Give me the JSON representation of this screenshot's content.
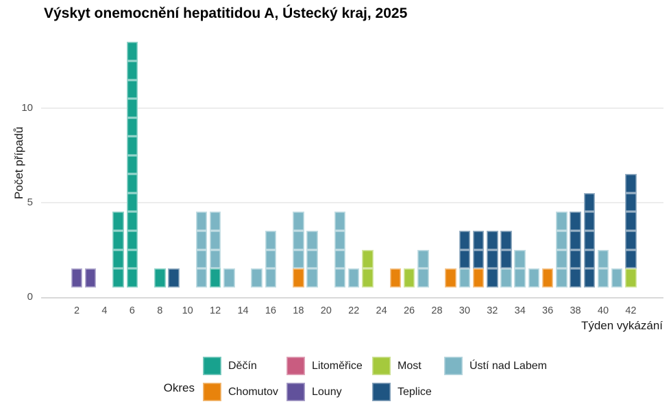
{
  "chart_data": {
    "type": "bar",
    "stacked": true,
    "unit": "one square = one case (tiles centered on integer counts)",
    "title": "Výskyt onemocnění hepatitidou A, Ústecký kraj, 2025",
    "xlabel": "Týden vykázání",
    "ylabel": "Počet případů",
    "legend_title": "Okres",
    "legend_position": "bottom",
    "grid": "horizontal major gridlines only",
    "x_ticks": [
      2,
      4,
      6,
      8,
      10,
      12,
      14,
      16,
      18,
      20,
      22,
      24,
      26,
      28,
      30,
      32,
      34,
      36,
      38,
      40,
      42
    ],
    "y_ticks": [
      0,
      5,
      10
    ],
    "xlim": [
      0.5,
      43.5
    ],
    "ylim": [
      0,
      13.9
    ],
    "districts": {
      "Děčín": "#18A28E",
      "Chomutov": "#E8830C",
      "Litoměřice": "#C95C80",
      "Louny": "#61519B",
      "Most": "#A5C93D",
      "Teplice": "#1F5582",
      "Ústí nad Labem": "#7CB5C4"
    },
    "legend_rows": [
      [
        "Děčín",
        "Litoměřice",
        "Most",
        "Ústí nad Labem"
      ],
      [
        "Chomutov",
        "Louny",
        "Teplice"
      ]
    ],
    "weeks": [
      {
        "week": 2,
        "stack": [
          {
            "district": "Louny",
            "count": 1
          }
        ]
      },
      {
        "week": 3,
        "stack": [
          {
            "district": "Louny",
            "count": 1
          }
        ]
      },
      {
        "week": 5,
        "stack": [
          {
            "district": "Děčín",
            "count": 4
          }
        ]
      },
      {
        "week": 6,
        "stack": [
          {
            "district": "Děčín",
            "count": 13
          }
        ]
      },
      {
        "week": 8,
        "stack": [
          {
            "district": "Děčín",
            "count": 1
          }
        ]
      },
      {
        "week": 9,
        "stack": [
          {
            "district": "Teplice",
            "count": 1
          }
        ]
      },
      {
        "week": 11,
        "stack": [
          {
            "district": "Ústí nad Labem",
            "count": 4
          }
        ]
      },
      {
        "week": 12,
        "stack": [
          {
            "district": "Děčín",
            "count": 1
          },
          {
            "district": "Ústí nad Labem",
            "count": 3
          }
        ]
      },
      {
        "week": 13,
        "stack": [
          {
            "district": "Ústí nad Labem",
            "count": 1
          }
        ]
      },
      {
        "week": 15,
        "stack": [
          {
            "district": "Ústí nad Labem",
            "count": 1
          }
        ]
      },
      {
        "week": 16,
        "stack": [
          {
            "district": "Ústí nad Labem",
            "count": 3
          }
        ]
      },
      {
        "week": 18,
        "stack": [
          {
            "district": "Chomutov",
            "count": 1
          },
          {
            "district": "Ústí nad Labem",
            "count": 3
          }
        ]
      },
      {
        "week": 19,
        "stack": [
          {
            "district": "Ústí nad Labem",
            "count": 3
          }
        ]
      },
      {
        "week": 21,
        "stack": [
          {
            "district": "Ústí nad Labem",
            "count": 4
          }
        ]
      },
      {
        "week": 22,
        "stack": [
          {
            "district": "Ústí nad Labem",
            "count": 1
          }
        ]
      },
      {
        "week": 23,
        "stack": [
          {
            "district": "Most",
            "count": 2
          }
        ]
      },
      {
        "week": 25,
        "stack": [
          {
            "district": "Chomutov",
            "count": 1
          }
        ]
      },
      {
        "week": 26,
        "stack": [
          {
            "district": "Most",
            "count": 1
          }
        ]
      },
      {
        "week": 27,
        "stack": [
          {
            "district": "Ústí nad Labem",
            "count": 2
          }
        ]
      },
      {
        "week": 29,
        "stack": [
          {
            "district": "Chomutov",
            "count": 1
          }
        ]
      },
      {
        "week": 30,
        "stack": [
          {
            "district": "Ústí nad Labem",
            "count": 1
          },
          {
            "district": "Teplice",
            "count": 2
          }
        ]
      },
      {
        "week": 31,
        "stack": [
          {
            "district": "Chomutov",
            "count": 1
          },
          {
            "district": "Teplice",
            "count": 2
          }
        ]
      },
      {
        "week": 32,
        "stack": [
          {
            "district": "Teplice",
            "count": 3
          }
        ]
      },
      {
        "week": 33,
        "stack": [
          {
            "district": "Ústí nad Labem",
            "count": 1
          },
          {
            "district": "Teplice",
            "count": 2
          }
        ]
      },
      {
        "week": 34,
        "stack": [
          {
            "district": "Ústí nad Labem",
            "count": 2
          }
        ]
      },
      {
        "week": 35,
        "stack": [
          {
            "district": "Ústí nad Labem",
            "count": 1
          }
        ]
      },
      {
        "week": 36,
        "stack": [
          {
            "district": "Chomutov",
            "count": 1
          }
        ]
      },
      {
        "week": 37,
        "stack": [
          {
            "district": "Ústí nad Labem",
            "count": 4
          }
        ]
      },
      {
        "week": 38,
        "stack": [
          {
            "district": "Teplice",
            "count": 4
          }
        ]
      },
      {
        "week": 39,
        "stack": [
          {
            "district": "Teplice",
            "count": 5
          }
        ]
      },
      {
        "week": 40,
        "stack": [
          {
            "district": "Ústí nad Labem",
            "count": 2
          }
        ]
      },
      {
        "week": 41,
        "stack": [
          {
            "district": "Ústí nad Labem",
            "count": 1
          }
        ]
      },
      {
        "week": 42,
        "stack": [
          {
            "district": "Most",
            "count": 1
          },
          {
            "district": "Teplice",
            "count": 5
          }
        ]
      }
    ],
    "colors": {
      "background": "#FFFFFF",
      "gridline": "#ECECEC",
      "axis_line": "#D9D9D9",
      "tick_text": "#4D4D4D",
      "label_text": "#1A1A1A",
      "title_text": "#000000"
    }
  }
}
